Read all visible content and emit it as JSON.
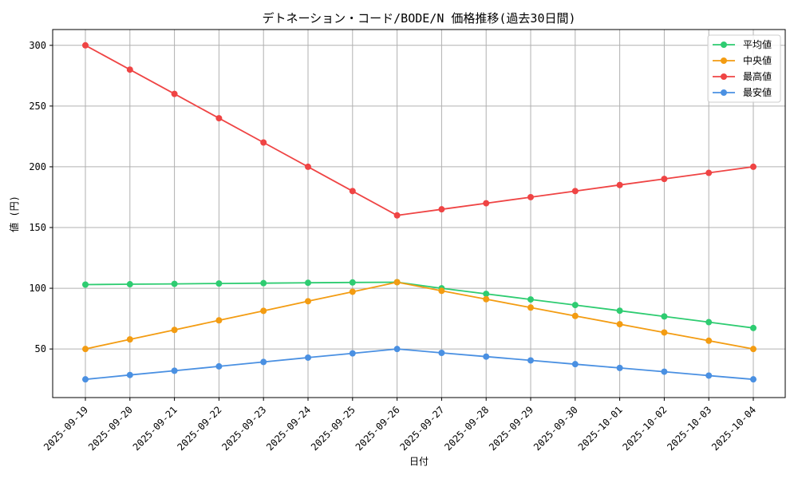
{
  "chart_data": {
    "type": "line",
    "title": "デトネーション・コード/BODE/N 価格推移(過去30日間)",
    "xlabel": "日付",
    "ylabel": "値 (円)",
    "ylim": [
      10,
      313
    ],
    "yticks": [
      50,
      100,
      150,
      200,
      250,
      300
    ],
    "grid": true,
    "legend_position": "top-right",
    "categories": [
      "2025-09-19",
      "2025-09-20",
      "2025-09-21",
      "2025-09-22",
      "2025-09-23",
      "2025-09-24",
      "2025-09-25",
      "2025-09-26",
      "2025-09-27",
      "2025-09-28",
      "2025-09-29",
      "2025-09-30",
      "2025-10-01",
      "2025-10-02",
      "2025-10-03",
      "2025-10-04"
    ],
    "series": [
      {
        "name": "平均値",
        "color": "#2ecc71",
        "values": [
          103,
          103.3,
          103.6,
          103.9,
          104.2,
          104.5,
          104.8,
          105,
          100,
          95.4,
          90.8,
          86.2,
          81.5,
          76.8,
          72.1,
          67.3
        ]
      },
      {
        "name": "中央値",
        "color": "#f39c12",
        "values": [
          50,
          57.9,
          65.7,
          73.6,
          81.4,
          89.3,
          97.1,
          105,
          97.9,
          91,
          84.1,
          77.2,
          70.4,
          63.6,
          56.8,
          50
        ]
      },
      {
        "name": "最高値",
        "color": "#ef4444",
        "values": [
          300,
          280,
          260,
          240,
          220,
          200,
          180,
          160,
          165,
          170,
          175,
          180,
          185,
          190,
          195,
          200
        ]
      },
      {
        "name": "最安値",
        "color": "#4a90e2",
        "values": [
          25,
          28.6,
          32.1,
          35.7,
          39.3,
          42.9,
          46.4,
          50,
          46.8,
          43.7,
          40.6,
          37.5,
          34.4,
          31.3,
          28.1,
          25
        ]
      }
    ]
  }
}
